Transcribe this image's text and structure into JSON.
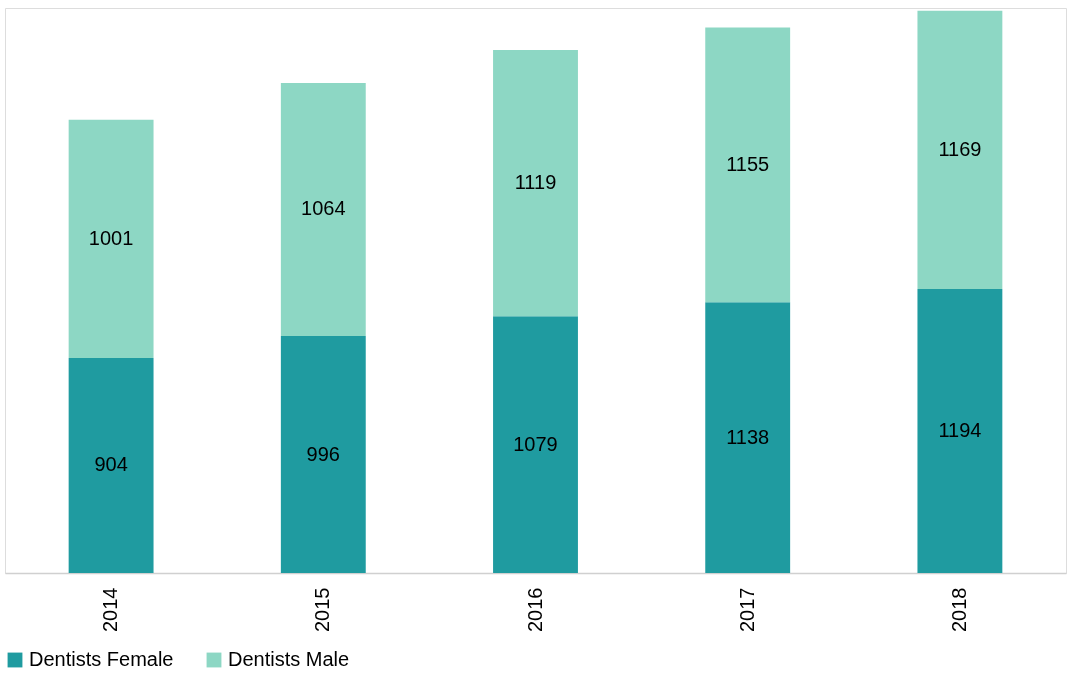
{
  "chart_data": {
    "type": "bar",
    "stacked": true,
    "data_labels": true,
    "legend": "bottom",
    "categories": [
      "2014",
      "2015",
      "2016",
      "2017",
      "2018"
    ],
    "series": [
      {
        "name": "Dentists Female",
        "color": "#1f9ba0",
        "values": [
          904,
          996,
          1079,
          1138,
          1194
        ]
      },
      {
        "name": "Dentists Male",
        "color": "#8dd7c4",
        "values": [
          1001,
          1064,
          1119,
          1155,
          1169
        ]
      }
    ]
  }
}
